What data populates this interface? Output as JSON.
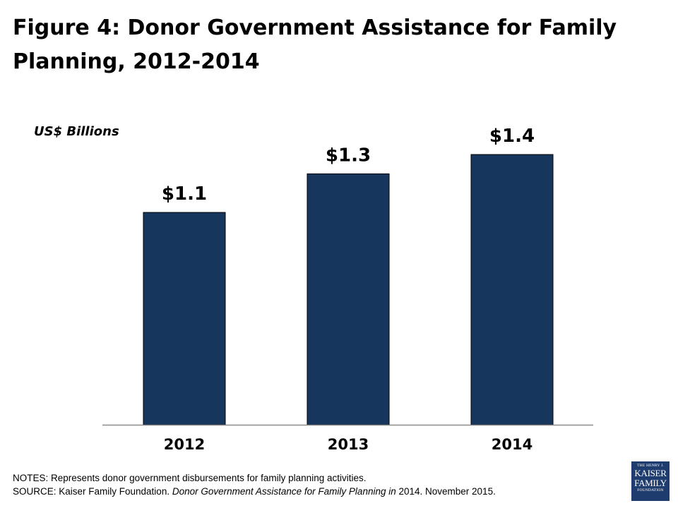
{
  "title": "Figure 4: Donor Government Assistance for Family Planning, 2012-2014",
  "chart_data": {
    "type": "bar",
    "title": "Figure 4: Donor Government Assistance for Family Planning, 2012-2014",
    "ylabel": "US$ Billions",
    "xlabel": "",
    "categories": [
      "2012",
      "2013",
      "2014"
    ],
    "values": [
      1.1,
      1.3,
      1.4
    ],
    "data_labels": [
      "$1.1",
      "$1.3",
      "$1.4"
    ],
    "ylim": [
      0,
      1.4
    ],
    "grid": false,
    "legend": "none",
    "bar_color": "#17365d"
  },
  "notes": "NOTES: Represents donor government disbursements for family planning activities.",
  "source": {
    "prefix": "SOURCE: Kaiser Family Foundation. ",
    "italic": "Donor Government Assistance for Family Planning in",
    "suffix": " 2014. November 2015."
  },
  "logo": {
    "line1": "THE HENRY J.",
    "line2": "KAISER",
    "line3": "FAMILY",
    "line4": "FOUNDATION"
  }
}
